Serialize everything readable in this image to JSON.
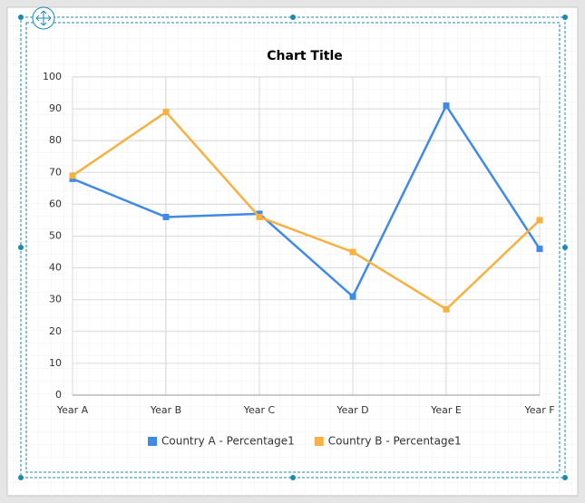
{
  "chart_data": {
    "type": "line",
    "title": "Chart Title",
    "categories": [
      "Year A",
      "Year B",
      "Year C",
      "Year D",
      "Year E",
      "Year F"
    ],
    "series": [
      {
        "name": "Country A - Percentage1",
        "color": "#3f8ae8",
        "values": [
          68,
          56,
          57,
          31,
          91,
          46
        ]
      },
      {
        "name": "Country B - Percentage1",
        "color": "#f8b13f",
        "values": [
          69,
          89,
          56,
          45,
          27,
          55
        ]
      }
    ],
    "ylim": [
      0,
      100
    ],
    "yticks": [
      0,
      10,
      20,
      30,
      40,
      50,
      60,
      70,
      80,
      90,
      100
    ],
    "grid": true,
    "legend": "bottom"
  }
}
